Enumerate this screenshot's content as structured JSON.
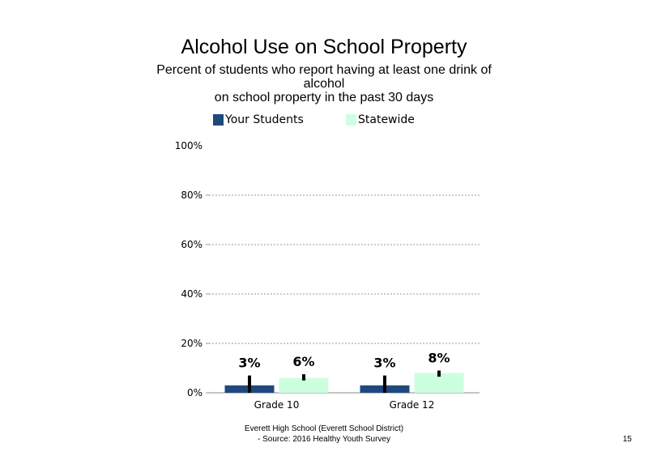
{
  "title": "Alcohol Use on School Property",
  "subtitle_lines": [
    "Percent of students  who report having at least one drink of",
    "alcohol",
    "on school property in the past 30 days"
  ],
  "footer": {
    "line1": "Everett High  School (Everett School District)",
    "line2": "- Source: 2016 Healthy  Youth Survey"
  },
  "page_number": "15",
  "chart_data": {
    "type": "bar",
    "title": "Alcohol Use on School Property",
    "categories": [
      "Grade 10",
      "Grade 12"
    ],
    "series": [
      {
        "name": "Your Students",
        "values": [
          3,
          3
        ],
        "labels": [
          "3%",
          "3%"
        ],
        "error_low": [
          0,
          0
        ],
        "error_high": [
          7,
          7
        ],
        "color": "#1f497d"
      },
      {
        "name": "Statewide",
        "values": [
          6,
          8
        ],
        "labels": [
          "6%",
          "8%"
        ],
        "error_low": [
          5,
          6.5
        ],
        "error_high": [
          7.5,
          9
        ],
        "color": "#ccffe0"
      }
    ],
    "ylim": [
      0,
      100
    ],
    "yticks": [
      0,
      20,
      40,
      60,
      80,
      100
    ],
    "ytick_labels": [
      "0%",
      "20%",
      "40%",
      "60%",
      "80%",
      "100%"
    ],
    "grid": true,
    "legend_position": "top"
  }
}
